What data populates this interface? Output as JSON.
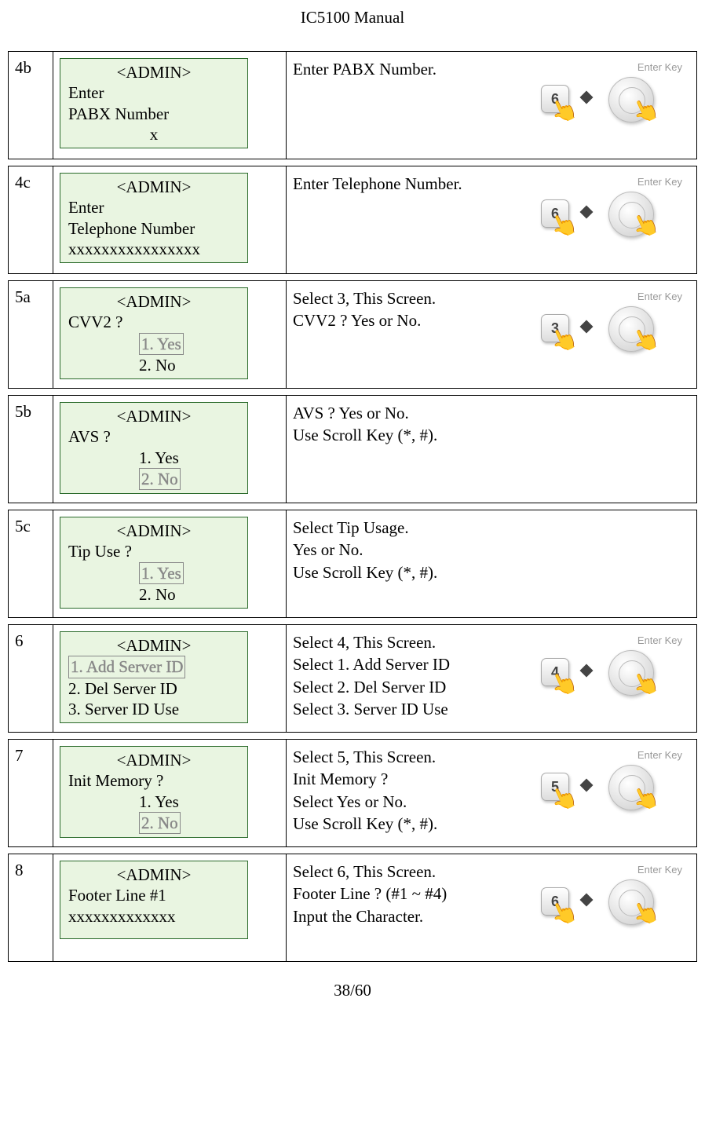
{
  "doc_title": "IC5100 Manual",
  "page_number": "38/60",
  "enter_key_label": "Enter Key",
  "rows": [
    {
      "num": "4b",
      "has_key": true,
      "key_digit": "6",
      "desc": [
        "Enter PABX Number."
      ],
      "lcd": {
        "title": "<ADMIN>",
        "lines": [
          {
            "text": "Enter",
            "type": "plain"
          },
          {
            "text": "PABX Number",
            "type": "plain"
          },
          {
            "text": "x",
            "type": "center"
          }
        ]
      }
    },
    {
      "num": "4c",
      "has_key": true,
      "key_digit": "6",
      "desc": [
        "Enter Telephone Number."
      ],
      "lcd": {
        "title": "<ADMIN>",
        "lines": [
          {
            "text": "Enter",
            "type": "plain"
          },
          {
            "text": "Telephone Number",
            "type": "plain"
          },
          {
            "text": "xxxxxxxxxxxxxxxx",
            "type": "plain"
          }
        ]
      }
    },
    {
      "num": "5a",
      "has_key": true,
      "key_digit": "3",
      "desc": [
        "Select 3, This Screen.",
        "CVV2 ? Yes or No."
      ],
      "lcd": {
        "title": "<ADMIN>",
        "lines": [
          {
            "text": "CVV2 ?",
            "type": "plain"
          },
          {
            "text": "1. Yes",
            "type": "selected"
          },
          {
            "text": "2. No",
            "type": "indent"
          }
        ]
      }
    },
    {
      "num": "5b",
      "has_key": false,
      "desc": [
        "AVS ? Yes or No.",
        "Use Scroll Key (*, #)."
      ],
      "lcd": {
        "title": "<ADMIN>",
        "lines": [
          {
            "text": "AVS ?",
            "type": "plain"
          },
          {
            "text": "1. Yes",
            "type": "indent"
          },
          {
            "text": "2. No",
            "type": "selected"
          }
        ]
      }
    },
    {
      "num": "5c",
      "has_key": false,
      "desc": [
        "Select Tip Usage.",
        "Yes or No.",
        "Use Scroll Key (*, #)."
      ],
      "lcd": {
        "title": "<ADMIN>",
        "lines": [
          {
            "text": "Tip Use ?",
            "type": "plain"
          },
          {
            "text": "1. Yes",
            "type": "selected"
          },
          {
            "text": "2. No",
            "type": "indent"
          }
        ]
      }
    },
    {
      "num": "6",
      "has_key": true,
      "key_digit": "4",
      "desc": [
        "Select 4, This Screen.",
        "Select 1. Add Server ID",
        "Select 2. Del Server ID",
        "Select 3. Server ID Use"
      ],
      "lcd": {
        "title": "<ADMIN>",
        "lines": [
          {
            "text": "1. Add Server ID",
            "type": "selected-left"
          },
          {
            "text": "2. Del Server ID",
            "type": "plain"
          },
          {
            "text": "3. Server ID Use",
            "type": "plain"
          }
        ]
      }
    },
    {
      "num": "7",
      "has_key": true,
      "key_digit": "5",
      "desc": [
        "Select 5, This Screen.",
        "Init Memory ?",
        "Select Yes or No.",
        "Use Scroll Key (*, #)."
      ],
      "lcd": {
        "title": "<ADMIN>",
        "lines": [
          {
            "text": "Init Memory ?",
            "type": "plain"
          },
          {
            "text": "1. Yes",
            "type": "indent"
          },
          {
            "text": "2. No",
            "type": "selected"
          }
        ]
      }
    },
    {
      "num": "8",
      "has_key": true,
      "key_digit": "6",
      "desc": [
        "Select 6, This Screen.",
        "Footer Line ? (#1 ~ #4)",
        "Input the Character."
      ],
      "lcd": {
        "title": "<ADMIN>",
        "lines": [
          {
            "text": "Footer Line #1",
            "type": "plain"
          },
          {
            "text": "xxxxxxxxxxxxx",
            "type": "plain"
          },
          {
            "text": " ",
            "type": "plain"
          }
        ]
      }
    }
  ]
}
